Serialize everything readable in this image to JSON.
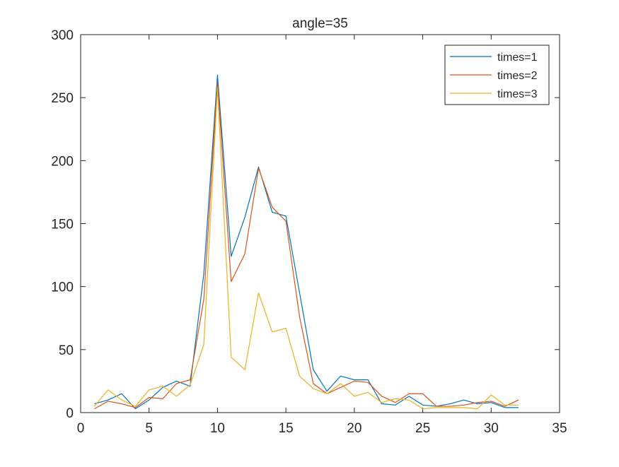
{
  "chart_data": {
    "type": "line",
    "title": "angle=35",
    "xlabel": "",
    "ylabel": "",
    "xlim": [
      0,
      35
    ],
    "ylim": [
      0,
      300
    ],
    "xticks": [
      0,
      5,
      10,
      15,
      20,
      25,
      30,
      35
    ],
    "yticks": [
      0,
      50,
      100,
      150,
      200,
      250,
      300
    ],
    "grid": false,
    "legend_position": "top-right",
    "x": [
      1,
      2,
      3,
      4,
      5,
      6,
      7,
      8,
      9,
      10,
      11,
      12,
      13,
      14,
      15,
      16,
      17,
      18,
      19,
      20,
      21,
      22,
      23,
      24,
      25,
      26,
      27,
      28,
      29,
      30,
      31,
      32
    ],
    "series": [
      {
        "name": "times=1",
        "color": "#0072BD",
        "values": [
          7,
          10,
          15,
          3,
          10,
          20,
          25,
          21,
          110,
          268,
          124,
          155,
          195,
          159,
          156,
          95,
          34,
          17,
          29,
          26,
          26,
          7,
          6,
          13,
          6,
          5,
          7,
          10,
          7,
          8,
          4,
          4
        ]
      },
      {
        "name": "times=2",
        "color": "#D95319",
        "values": [
          3,
          9,
          7,
          4,
          12,
          11,
          23,
          26,
          90,
          262,
          104,
          126,
          194,
          163,
          152,
          76,
          23,
          15,
          20,
          25,
          24,
          13,
          8,
          15,
          15,
          5,
          5,
          6,
          8,
          9,
          5,
          10
        ]
      },
      {
        "name": "times=3",
        "color": "#EDB120",
        "values": [
          5,
          18,
          10,
          5,
          18,
          21,
          13,
          22,
          54,
          258,
          44,
          34,
          95,
          64,
          67,
          29,
          19,
          15,
          23,
          13,
          16,
          8,
          11,
          10,
          3,
          4,
          4,
          4,
          3,
          14,
          6,
          6
        ]
      }
    ]
  }
}
